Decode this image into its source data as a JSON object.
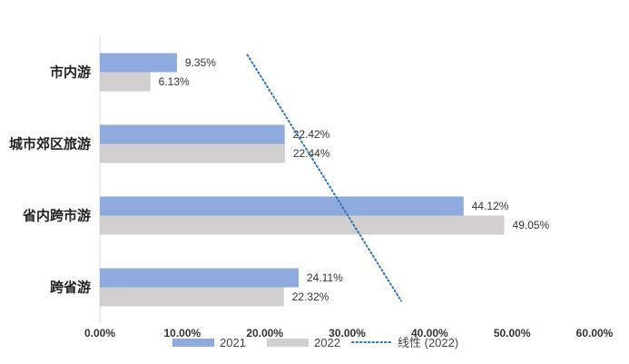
{
  "chart_data": {
    "type": "bar",
    "orientation": "horizontal",
    "categories": [
      "市内游",
      "城市郊区旅游",
      "省内跨市游",
      "跨省游"
    ],
    "series": [
      {
        "name": "2021",
        "color": "#8FAADC",
        "values": [
          9.35,
          22.42,
          44.12,
          24.11
        ],
        "labels": [
          "9.35%",
          "22.42%",
          "44.12%",
          "24.11%"
        ]
      },
      {
        "name": "2022",
        "color": "#D0CECE",
        "values": [
          6.13,
          22.44,
          49.05,
          22.32
        ],
        "labels": [
          "6.13%",
          "22.44%",
          "49.05%",
          "22.32%"
        ]
      }
    ],
    "trendline": {
      "name": "线性 (2022)",
      "color": "#2E75B6",
      "style": "dotted",
      "start": [
        13.5,
        0
      ],
      "end": [
        36.0,
        3
      ]
    },
    "xlim": [
      0,
      60
    ],
    "xticks": [
      0,
      10,
      20,
      30,
      40,
      50,
      60
    ],
    "xtick_labels": [
      "0.00%",
      "10.00%",
      "20.00%",
      "30.00%",
      "40.00%",
      "50.00%",
      "60.00%"
    ],
    "legend": [
      "2021",
      "2022",
      "线性 (2022)"
    ],
    "legend_position": "bottom",
    "grid": false
  }
}
